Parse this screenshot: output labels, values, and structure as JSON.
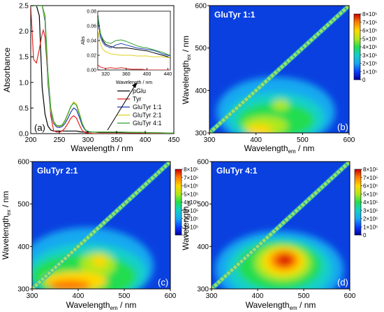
{
  "chart_data": [
    {
      "panel": "(a)",
      "type": "line",
      "xlabel": "Wavelength / nm",
      "ylabel": "Absorbance",
      "xlim": [
        200,
        450
      ],
      "ylim": [
        0,
        2.5
      ],
      "xticks": [
        "200",
        "250",
        "300",
        "350",
        "400",
        "450"
      ],
      "yticks": [
        "0.0",
        "0.5",
        "1.0",
        "1.5",
        "2.0",
        "2.5"
      ],
      "legend_position": "center-right",
      "series": [
        {
          "name": "pGlu",
          "color": "#000000",
          "x": [
            200,
            205,
            210,
            215,
            220,
            225,
            230,
            235,
            240,
            245,
            250,
            255,
            260,
            265,
            270,
            275,
            280,
            285,
            290,
            295,
            300,
            310,
            320,
            350,
            400,
            450
          ],
          "y": [
            2.5,
            2.5,
            2.5,
            2.3,
            0.9,
            0.38,
            0.15,
            0.07,
            0.05,
            0.05,
            0.05,
            0.05,
            0.05,
            0.05,
            0.05,
            0.05,
            0.05,
            0.04,
            0.03,
            0.03,
            0.03,
            0.03,
            0.02,
            0.02,
            0.01,
            0.01
          ]
        },
        {
          "name": "Tyr",
          "color": "#e8221c",
          "x": [
            200,
            205,
            210,
            215,
            220,
            222,
            225,
            230,
            235,
            240,
            245,
            250,
            255,
            260,
            265,
            270,
            275,
            280,
            285,
            290,
            295,
            300,
            310,
            350,
            400,
            450
          ],
          "y": [
            2.5,
            1.45,
            1.38,
            1.65,
            1.95,
            2.02,
            1.88,
            1.1,
            0.35,
            0.06,
            0.03,
            0.03,
            0.05,
            0.11,
            0.2,
            0.3,
            0.35,
            0.3,
            0.17,
            0.06,
            0.02,
            0.01,
            0.0,
            0.0,
            0.0,
            0.0
          ]
        },
        {
          "name": "GluTyr 1:1",
          "color": "#1f3fb5",
          "x": [
            200,
            205,
            210,
            215,
            220,
            225,
            230,
            235,
            240,
            245,
            250,
            255,
            260,
            265,
            270,
            275,
            280,
            285,
            290,
            295,
            300,
            310,
            350,
            400,
            450
          ],
          "y": [
            2.5,
            2.5,
            2.5,
            2.5,
            2.5,
            2.2,
            1.0,
            0.4,
            0.2,
            0.13,
            0.12,
            0.14,
            0.2,
            0.3,
            0.42,
            0.5,
            0.46,
            0.32,
            0.16,
            0.07,
            0.04,
            0.03,
            0.03,
            0.02,
            0.01
          ]
        },
        {
          "name": "GluTyr 2:1",
          "color": "#e0d020",
          "x": [
            200,
            205,
            210,
            215,
            220,
            225,
            230,
            235,
            240,
            245,
            250,
            255,
            260,
            265,
            270,
            275,
            280,
            285,
            290,
            295,
            300,
            310,
            350,
            400,
            450
          ],
          "y": [
            2.5,
            2.5,
            2.5,
            2.5,
            2.5,
            2.25,
            1.1,
            0.45,
            0.22,
            0.15,
            0.14,
            0.16,
            0.24,
            0.38,
            0.52,
            0.62,
            0.58,
            0.4,
            0.2,
            0.08,
            0.04,
            0.03,
            0.03,
            0.02,
            0.01
          ]
        },
        {
          "name": "GluTyr 4:1",
          "color": "#2ea02e",
          "x": [
            200,
            205,
            210,
            215,
            220,
            225,
            230,
            235,
            240,
            245,
            250,
            255,
            260,
            265,
            270,
            275,
            280,
            285,
            290,
            295,
            300,
            310,
            350,
            400,
            450
          ],
          "y": [
            2.5,
            2.5,
            2.5,
            2.5,
            2.5,
            2.3,
            1.2,
            0.5,
            0.24,
            0.16,
            0.15,
            0.17,
            0.26,
            0.39,
            0.53,
            0.6,
            0.55,
            0.38,
            0.19,
            0.08,
            0.04,
            0.03,
            0.03,
            0.02,
            0.01
          ]
        }
      ],
      "inset": {
        "xlabel": "Wavelength / nm",
        "ylabel": "Abs",
        "xlim": [
          305,
          445
        ],
        "ylim": [
          0,
          0.08
        ],
        "xticks": [
          "320",
          "360",
          "400",
          "440"
        ],
        "yticks": [
          "0.00",
          "0.02",
          "0.04",
          "0.06",
          "0.08"
        ],
        "series": [
          {
            "name": "pGlu",
            "color": "#000000",
            "x": [
              305,
              310,
              315,
              320,
              330,
              340,
              350,
              360,
              370,
              380,
              390,
              400,
              410,
              420,
              430,
              440,
              445
            ],
            "y": [
              0.075,
              0.05,
              0.04,
              0.035,
              0.032,
              0.03,
              0.03,
              0.03,
              0.029,
              0.028,
              0.027,
              0.026,
              0.024,
              0.022,
              0.02,
              0.018,
              0.016
            ]
          },
          {
            "name": "Tyr",
            "color": "#e8221c",
            "x": [
              305,
              310,
              315,
              320,
              330,
              340,
              350,
              360,
              370,
              380,
              390,
              400,
              420,
              445
            ],
            "y": [
              0.007,
              0.004,
              0.003,
              0.002,
              0.003,
              0.002,
              0.003,
              0.002,
              0.001,
              0.001,
              0.001,
              0.0,
              0.0,
              0.0
            ]
          },
          {
            "name": "GluTyr 1:1",
            "color": "#1f3fb5",
            "x": [
              305,
              310,
              315,
              320,
              330,
              340,
              350,
              360,
              370,
              380,
              390,
              400,
              410,
              420,
              430,
              440,
              445
            ],
            "y": [
              0.07,
              0.045,
              0.037,
              0.033,
              0.03,
              0.034,
              0.036,
              0.034,
              0.032,
              0.03,
              0.029,
              0.028,
              0.027,
              0.025,
              0.022,
              0.02,
              0.019
            ]
          },
          {
            "name": "GluTyr 2:1",
            "color": "#e0d020",
            "x": [
              305,
              310,
              315,
              320,
              330,
              340,
              350,
              360,
              370,
              380,
              390,
              400,
              410,
              420,
              430,
              440,
              445
            ],
            "y": [
              0.055,
              0.035,
              0.028,
              0.025,
              0.022,
              0.021,
              0.02,
              0.02,
              0.02,
              0.019,
              0.019,
              0.019,
              0.018,
              0.018,
              0.018,
              0.017,
              0.017
            ]
          },
          {
            "name": "GluTyr 4:1",
            "color": "#2ea02e",
            "x": [
              305,
              310,
              315,
              320,
              330,
              340,
              350,
              360,
              370,
              380,
              390,
              400,
              410,
              420,
              430,
              440,
              445
            ],
            "y": [
              0.072,
              0.05,
              0.042,
              0.038,
              0.036,
              0.04,
              0.041,
              0.039,
              0.036,
              0.033,
              0.031,
              0.03,
              0.028,
              0.026,
              0.024,
              0.021,
              0.02
            ]
          }
        ]
      }
    },
    {
      "panel": "(b)",
      "type": "heatmap",
      "title": "GluTyr 1:1",
      "xlabel": "Wavelength",
      "xlabel_sub": "em",
      "xlabel_unit": " / nm",
      "ylabel": "Wavelength",
      "ylabel_sub": "ex",
      "ylabel_unit": " / nm",
      "xlim": [
        300,
        600
      ],
      "ylim": [
        300,
        600
      ],
      "xticks": [
        "300",
        "400",
        "500",
        "600"
      ],
      "yticks": [
        "300",
        "400",
        "500",
        "600"
      ],
      "colorbar_ticks": [
        "8×10⁵",
        "7×10⁵",
        "6×10⁵",
        "5×10⁵",
        "4×10⁵",
        "3×10⁵",
        "2×10⁵",
        "1×10⁵",
        "0"
      ],
      "colorbar_range": [
        0,
        800000
      ],
      "peak_ex_em": [
        310,
        410
      ],
      "features": "fluorescence centred at ex 300–330 / em 380–440 nm; broad emission em 380–480 nm; scatter diagonal em = ex"
    },
    {
      "panel": "(c)",
      "type": "heatmap",
      "title": "GluTyr 2:1",
      "xlabel": "Wavelength",
      "xlabel_sub": "em",
      "xlabel_unit": " / nm",
      "ylabel": "Wavelength",
      "ylabel_sub": "ex",
      "ylabel_unit": " / nm",
      "xlim": [
        300,
        600
      ],
      "ylim": [
        300,
        600
      ],
      "xticks": [
        "300",
        "400",
        "500",
        "600"
      ],
      "yticks": [
        "300",
        "400",
        "500",
        "600"
      ],
      "colorbar_ticks": [
        "8×10⁵",
        "7×10⁵",
        "6×10⁵",
        "5×10⁵",
        "4×10⁵",
        "3×10⁵",
        "2×10⁵",
        "1×10⁵",
        "0"
      ],
      "colorbar_range": [
        0,
        800000
      ],
      "peak_ex_em": [
        305,
        390
      ],
      "features": "strong emission at ex 300–320 / em 350–420 nm; secondary maximum at ex ~350 / em ~440 nm; scatter diagonal em = ex"
    },
    {
      "panel": "(d)",
      "type": "heatmap",
      "title": "GluTyr 4:1",
      "xlabel": "Wavelength",
      "xlabel_sub": "em",
      "xlabel_unit": " / nm",
      "ylabel": "Wavelength",
      "ylabel_sub": "ex",
      "ylabel_unit": "",
      "xlim": [
        300,
        600
      ],
      "ylim": [
        300,
        600
      ],
      "xticks": [
        "300",
        "400",
        "500",
        "600"
      ],
      "yticks": [
        "300",
        "400",
        "500",
        "600"
      ],
      "colorbar_ticks": [
        "8×10⁵",
        "7×10⁵",
        "6×10⁵",
        "5×10⁵",
        "4×10⁵",
        "3×10⁵",
        "2×10⁵",
        "1×10⁵",
        "0"
      ],
      "colorbar_range": [
        0,
        800000
      ],
      "peak_ex_em": [
        365,
        450
      ],
      "features": "maximum at ex ~365 / em ~450 nm; broad emission em 380–500 nm; scatter diagonal em = ex"
    }
  ]
}
